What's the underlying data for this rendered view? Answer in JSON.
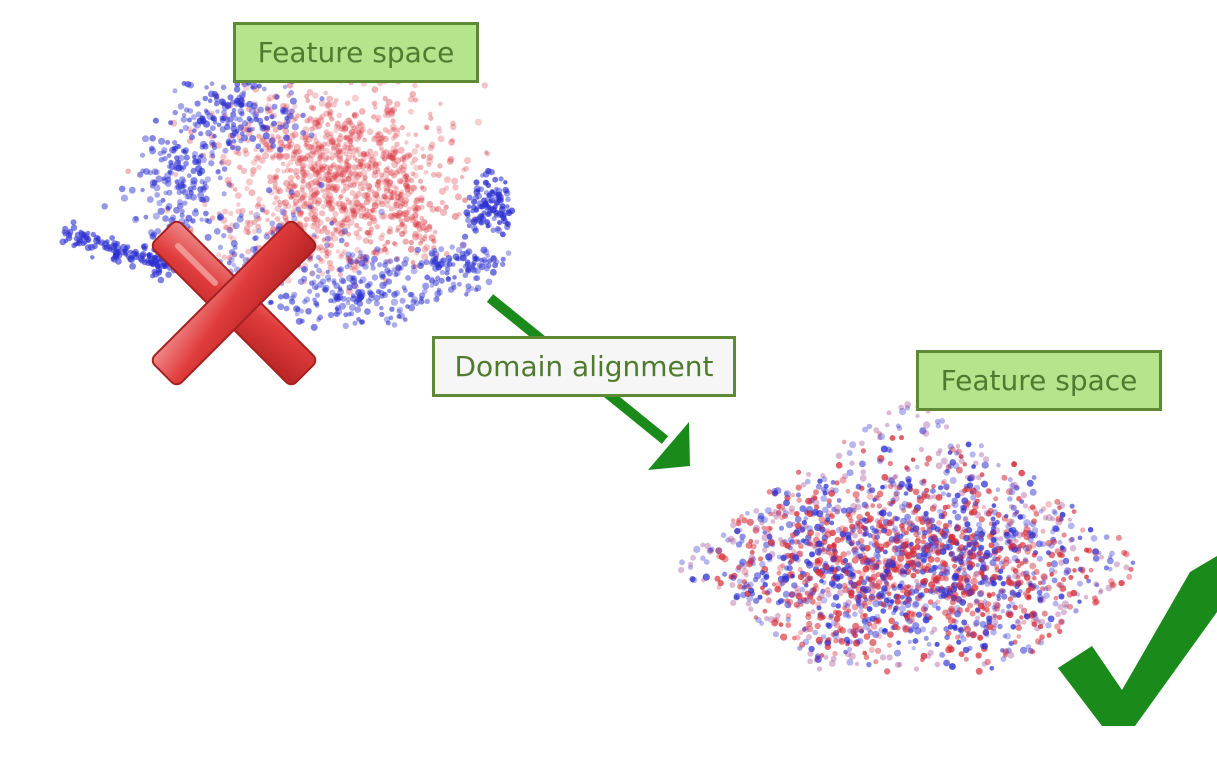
{
  "before": {
    "label": "Feature space",
    "status": "x-mark-icon"
  },
  "transition": {
    "label": "Domain alignment",
    "arrow_icon": "arrow-down-right-icon"
  },
  "after": {
    "label": "Feature space",
    "status": "check-mark-icon"
  },
  "colors": {
    "source_points": "#d9303a",
    "target_points": "#2b2fd0",
    "label_fill": "#b4e48c",
    "label_border": "#5f8a35",
    "label_text": "#4f7b2f",
    "arrow": "#1a8a1a",
    "cross": "#d83a3a",
    "check": "#1a8a1a"
  }
}
